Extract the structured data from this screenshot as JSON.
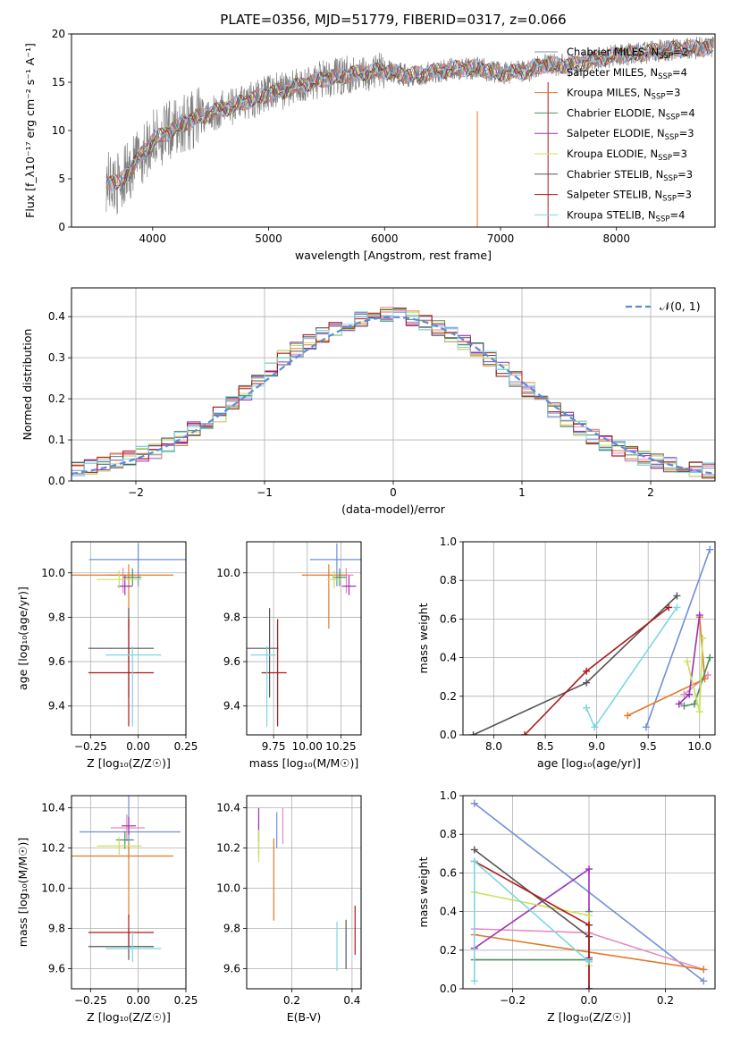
{
  "figure_title": "PLATE=0356, MJD=51779, FIBERID=0317, z=0.066",
  "colors": {
    "chabrier_miles": "#6f8fd8",
    "salpeter_miles": "#e58bbf",
    "kroupa_miles": "#e07a2a",
    "chabrier_elodie": "#4e8f5e",
    "salpeter_elodie": "#9b30b8",
    "kroupa_elodie": "#cbe05a",
    "chabrier_stelib": "#555555",
    "salpeter_stelib": "#b01818",
    "kroupa_stelib": "#7ad8e0",
    "data": "#808080",
    "gaussian": "#5b8bd8"
  },
  "chart_data": [
    {
      "type": "line",
      "xlabel": "wavelength [Angstrom, rest frame]",
      "ylabel": "Flux [f_λ10⁻¹⁷ erg cm⁻² s⁻¹ A⁻¹]",
      "xlim": [
        3300,
        8850
      ],
      "ylim": [
        0,
        20
      ],
      "xticks": [
        "4000",
        "5000",
        "6000",
        "7000",
        "8000"
      ],
      "yticks": [
        "0",
        "5",
        "10",
        "15",
        "20"
      ],
      "grid": false,
      "legend_position": "top-right",
      "legend": [
        {
          "label": "Chabrier MILES, N",
          "sub": "SSP",
          "suffix": "=2",
          "key": "chabrier_miles"
        },
        {
          "label": "Salpeter MILES, N",
          "sub": "SSP",
          "suffix": "=4",
          "key": "salpeter_miles"
        },
        {
          "label": "Kroupa MILES, N",
          "sub": "SSP",
          "suffix": "=3",
          "key": "kroupa_miles"
        },
        {
          "label": "Chabrier ELODIE, N",
          "sub": "SSP",
          "suffix": "=4",
          "key": "chabrier_elodie"
        },
        {
          "label": "Salpeter ELODIE, N",
          "sub": "SSP",
          "suffix": "=3",
          "key": "salpeter_elodie"
        },
        {
          "label": "Kroupa ELODIE, N",
          "sub": "SSP",
          "suffix": "=3",
          "key": "kroupa_elodie"
        },
        {
          "label": "Chabrier STELIB, N",
          "sub": "SSP",
          "suffix": "=3",
          "key": "chabrier_stelib"
        },
        {
          "label": "Salpeter STELIB, N",
          "sub": "SSP",
          "suffix": "=3",
          "key": "salpeter_stelib"
        },
        {
          "label": "Kroupa STELIB, N",
          "sub": "SSP",
          "suffix": "=4",
          "key": "kroupa_stelib"
        }
      ],
      "spectrum_continuum": {
        "x": [
          3600,
          3700,
          3800,
          3900,
          4000,
          4100,
          4200,
          4300,
          4400,
          4600,
          4800,
          5000,
          5200,
          5400,
          5600,
          5800,
          6000,
          6200,
          6400,
          6600,
          6800,
          7000,
          7200,
          7400,
          7600,
          7800,
          8000,
          8200,
          8400,
          8600,
          8800
        ],
        "y": [
          4.8,
          4.5,
          5.8,
          7.4,
          9.0,
          9.6,
          10.3,
          10.9,
          11.4,
          12.2,
          13.0,
          13.8,
          14.4,
          15.1,
          15.6,
          16.0,
          16.2,
          15.7,
          16.0,
          16.4,
          16.5,
          15.9,
          16.1,
          16.9,
          16.7,
          17.3,
          17.8,
          18.0,
          18.3,
          18.5,
          18.6
        ]
      }
    },
    {
      "type": "bar",
      "xlabel": "(data-model)/error",
      "ylabel": "Normed distribution",
      "xlim": [
        -2.5,
        2.5
      ],
      "ylim": [
        0,
        0.47
      ],
      "xticks": [
        "−2",
        "−1",
        "0",
        "1",
        "2"
      ],
      "yticks": [
        "0.0",
        "0.1",
        "0.2",
        "0.3",
        "0.4"
      ],
      "grid": true,
      "legend_position": "top-right",
      "legend": [
        {
          "label": "𝒩(0, 1)",
          "key": "gaussian"
        }
      ],
      "bin_width": 0.1,
      "histogram_centers": [
        -2.45,
        -2.35,
        -2.25,
        -2.15,
        -2.05,
        -1.95,
        -1.85,
        -1.75,
        -1.65,
        -1.55,
        -1.45,
        -1.35,
        -1.25,
        -1.15,
        -1.05,
        -0.95,
        -0.85,
        -0.75,
        -0.65,
        -0.55,
        -0.45,
        -0.35,
        -0.25,
        -0.15,
        -0.05,
        0.05,
        0.15,
        0.25,
        0.35,
        0.45,
        0.55,
        0.65,
        0.75,
        0.85,
        0.95,
        1.05,
        1.15,
        1.25,
        1.35,
        1.45,
        1.55,
        1.65,
        1.75,
        1.85,
        1.95,
        2.05,
        2.15,
        2.25,
        2.35,
        2.45
      ],
      "histogram_values": [
        0.03,
        0.034,
        0.04,
        0.05,
        0.057,
        0.066,
        0.072,
        0.088,
        0.104,
        0.126,
        0.145,
        0.162,
        0.19,
        0.215,
        0.24,
        0.27,
        0.3,
        0.32,
        0.338,
        0.355,
        0.372,
        0.384,
        0.394,
        0.402,
        0.405,
        0.403,
        0.396,
        0.386,
        0.372,
        0.356,
        0.338,
        0.318,
        0.298,
        0.272,
        0.248,
        0.222,
        0.196,
        0.172,
        0.15,
        0.128,
        0.108,
        0.092,
        0.078,
        0.066,
        0.056,
        0.048,
        0.04,
        0.034,
        0.029,
        0.025
      ]
    },
    {
      "type": "scatter",
      "xlabel": "Z [log₁₀(Z/Z☉)]",
      "ylabel": "age  [log₁₀(age/yr)]",
      "xlim": [
        -0.35,
        0.25
      ],
      "ylim": [
        9.27,
        10.14
      ],
      "xticks": [
        "−0.25",
        "0.00",
        "0.25"
      ],
      "yticks": [
        "9.4",
        "9.6",
        "9.8",
        "10.0"
      ],
      "grid": true,
      "points": [
        {
          "key": "chabrier_miles",
          "x": 0.0,
          "y": 10.06
        },
        {
          "key": "salpeter_miles",
          "x": -0.08,
          "y": 9.99
        },
        {
          "key": "kroupa_miles",
          "x": -0.05,
          "y": 9.99
        },
        {
          "key": "chabrier_elodie",
          "x": -0.03,
          "y": 9.98
        },
        {
          "key": "salpeter_elodie",
          "x": -0.07,
          "y": 9.94
        },
        {
          "key": "kroupa_elodie",
          "x": -0.1,
          "y": 9.97
        },
        {
          "key": "chabrier_stelib",
          "x": -0.05,
          "y": 9.66
        },
        {
          "key": "salpeter_stelib",
          "x": -0.05,
          "y": 9.55
        },
        {
          "key": "kroupa_stelib",
          "x": -0.03,
          "y": 9.63
        }
      ]
    },
    {
      "type": "scatter",
      "xlabel": "mass [log₁₀(M/M☉)]",
      "ylabel": "",
      "xlim": [
        9.55,
        10.4
      ],
      "ylim": [
        9.27,
        10.14
      ],
      "xticks": [
        "9.75",
        "10.00",
        "10.25"
      ],
      "yticks": [
        "9.4",
        "9.6",
        "9.8",
        "10.0"
      ],
      "grid": true,
      "points": [
        {
          "key": "chabrier_miles",
          "x": 10.22,
          "y": 10.06
        },
        {
          "key": "salpeter_miles",
          "x": 10.29,
          "y": 9.99
        },
        {
          "key": "kroupa_miles",
          "x": 10.16,
          "y": 9.99
        },
        {
          "key": "chabrier_elodie",
          "x": 10.24,
          "y": 9.98
        },
        {
          "key": "salpeter_elodie",
          "x": 10.31,
          "y": 9.94
        },
        {
          "key": "kroupa_elodie",
          "x": 10.2,
          "y": 9.97
        },
        {
          "key": "chabrier_stelib",
          "x": 9.72,
          "y": 9.66
        },
        {
          "key": "salpeter_stelib",
          "x": 9.78,
          "y": 9.55
        },
        {
          "key": "kroupa_stelib",
          "x": 9.7,
          "y": 9.63
        }
      ]
    },
    {
      "type": "line",
      "xlabel": "age  [log₁₀(age/yr)]",
      "ylabel": "mass weight",
      "xlim": [
        7.7,
        10.15
      ],
      "ylim": [
        0.0,
        1.0
      ],
      "xticks": [
        "8.0",
        "8.5",
        "9.0",
        "9.5",
        "10.0"
      ],
      "yticks": [
        "0.0",
        "0.2",
        "0.4",
        "0.6",
        "0.8",
        "1.0"
      ],
      "grid": true,
      "series": [
        {
          "key": "chabrier_miles",
          "x": [
            9.48,
            10.1
          ],
          "y": [
            0.04,
            0.96
          ]
        },
        {
          "key": "salpeter_miles",
          "x": [
            9.85,
            10.08
          ],
          "y": [
            0.21,
            0.31
          ]
        },
        {
          "key": "kroupa_miles",
          "x": [
            9.3,
            10.05,
            10.0
          ],
          "y": [
            0.1,
            0.29,
            0.61
          ]
        },
        {
          "key": "chabrier_elodie",
          "x": [
            9.85,
            9.95,
            10.1
          ],
          "y": [
            0.15,
            0.16,
            0.4
          ]
        },
        {
          "key": "salpeter_elodie",
          "x": [
            9.8,
            9.9,
            10.0
          ],
          "y": [
            0.16,
            0.21,
            0.62
          ]
        },
        {
          "key": "kroupa_elodie",
          "x": [
            9.88,
            10.0,
            10.03
          ],
          "y": [
            0.38,
            0.12,
            0.5
          ]
        },
        {
          "key": "chabrier_stelib",
          "x": [
            7.8,
            8.9,
            9.78
          ],
          "y": [
            0.0,
            0.27,
            0.72
          ]
        },
        {
          "key": "salpeter_stelib",
          "x": [
            8.3,
            8.9,
            9.7
          ],
          "y": [
            0.0,
            0.33,
            0.66
          ]
        },
        {
          "key": "kroupa_stelib",
          "x": [
            8.9,
            8.98,
            9.78
          ],
          "y": [
            0.14,
            0.04,
            0.66
          ]
        }
      ]
    },
    {
      "type": "scatter",
      "xlabel": "Z [log₁₀(Z/Z☉)]",
      "ylabel": "mass [log₁₀(M/M☉)]",
      "xlim": [
        -0.35,
        0.25
      ],
      "ylim": [
        9.5,
        10.46
      ],
      "xticks": [
        "−0.25",
        "0.00",
        "0.25"
      ],
      "yticks": [
        "9.6",
        "9.8",
        "10.0",
        "10.2",
        "10.4"
      ],
      "grid": true,
      "points": [
        {
          "key": "chabrier_miles",
          "x": -0.05,
          "y": 10.28
        },
        {
          "key": "salpeter_miles",
          "x": -0.06,
          "y": 10.3
        },
        {
          "key": "kroupa_miles",
          "x": -0.05,
          "y": 10.16
        },
        {
          "key": "chabrier_elodie",
          "x": -0.07,
          "y": 10.24
        },
        {
          "key": "salpeter_elodie",
          "x": -0.05,
          "y": 10.31
        },
        {
          "key": "kroupa_elodie",
          "x": -0.1,
          "y": 10.21
        },
        {
          "key": "chabrier_stelib",
          "x": -0.05,
          "y": 9.71
        },
        {
          "key": "salpeter_stelib",
          "x": -0.05,
          "y": 9.78
        },
        {
          "key": "kroupa_stelib",
          "x": -0.03,
          "y": 9.7
        }
      ]
    },
    {
      "type": "scatter",
      "xlabel": "E(B-V)",
      "ylabel": "",
      "xlim": [
        0.05,
        0.43
      ],
      "ylim": [
        9.5,
        10.46
      ],
      "xticks": [
        "0.2",
        "0.4"
      ],
      "yticks": [
        "9.6",
        "9.8",
        "10.0",
        "10.2",
        "10.4"
      ],
      "grid": true,
      "points": [
        {
          "key": "chabrier_miles",
          "x": 0.15,
          "y": 10.28
        },
        {
          "key": "salpeter_miles",
          "x": 0.17,
          "y": 10.3
        },
        {
          "key": "kroupa_miles",
          "x": 0.14,
          "y": 10.15
        },
        {
          "key": "chabrier_elodie",
          "x": 0.09,
          "y": 10.24
        },
        {
          "key": "salpeter_elodie",
          "x": 0.09,
          "y": 10.31
        },
        {
          "key": "kroupa_elodie",
          "x": 0.09,
          "y": 10.21
        },
        {
          "key": "chabrier_stelib",
          "x": 0.38,
          "y": 9.71
        },
        {
          "key": "salpeter_stelib",
          "x": 0.41,
          "y": 9.78
        },
        {
          "key": "kroupa_stelib",
          "x": 0.35,
          "y": 9.7
        }
      ]
    },
    {
      "type": "line",
      "xlabel": "Z [log₁₀(Z/Z☉)]",
      "ylabel": "mass weight",
      "xlim": [
        -0.33,
        0.33
      ],
      "ylim": [
        0.0,
        1.0
      ],
      "xticks": [
        "−0.2",
        "0.0",
        "0.2"
      ],
      "yticks": [
        "0.0",
        "0.2",
        "0.4",
        "0.6",
        "0.8",
        "1.0"
      ],
      "grid": true,
      "series": [
        {
          "key": "chabrier_miles",
          "x": [
            -0.3,
            0.3
          ],
          "y": [
            0.96,
            0.04
          ]
        },
        {
          "key": "salpeter_miles",
          "x": [
            -0.3,
            0.0,
            0.3
          ],
          "y": [
            0.31,
            0.29,
            0.1
          ]
        },
        {
          "key": "kroupa_miles",
          "x": [
            -0.3,
            0.3
          ],
          "y": [
            0.28,
            0.1
          ]
        },
        {
          "key": "chabrier_elodie",
          "x": [
            -0.3,
            0.0,
            0.0
          ],
          "y": [
            0.15,
            0.15,
            0.4
          ]
        },
        {
          "key": "salpeter_elodie",
          "x": [
            -0.3,
            0.0,
            0.0
          ],
          "y": [
            0.21,
            0.62,
            0.16
          ]
        },
        {
          "key": "kroupa_elodie",
          "x": [
            -0.3,
            0.0,
            0.0
          ],
          "y": [
            0.5,
            0.38,
            0.12
          ]
        },
        {
          "key": "chabrier_stelib",
          "x": [
            -0.3,
            0.0,
            0.0
          ],
          "y": [
            0.72,
            0.27,
            0.0
          ]
        },
        {
          "key": "salpeter_stelib",
          "x": [
            -0.3,
            0.0,
            0.0
          ],
          "y": [
            0.66,
            0.33,
            0.0
          ]
        },
        {
          "key": "kroupa_stelib",
          "x": [
            -0.3,
            -0.3,
            0.0
          ],
          "y": [
            0.04,
            0.66,
            0.14
          ]
        }
      ]
    }
  ]
}
